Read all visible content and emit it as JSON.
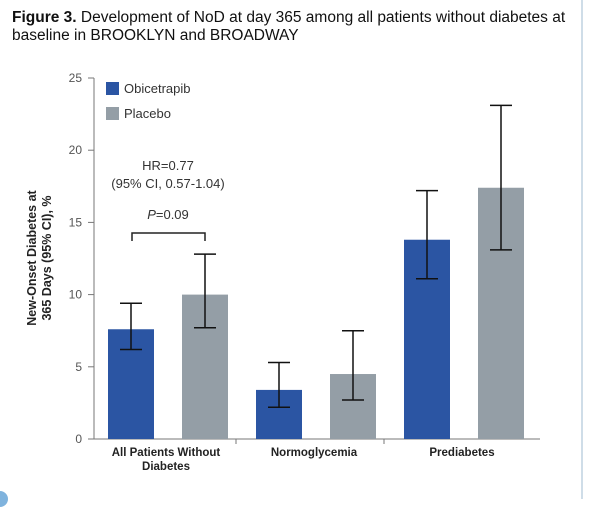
{
  "figure": {
    "label": "Figure 3.",
    "caption": "Development of NoD at day 365 among all patients without diabetes at baseline in BROOKLYN and BROADWAY"
  },
  "chart_data": {
    "type": "bar",
    "ylabel": "New-Onset Diabetes at 365 Days (95% CI), %",
    "ylim": [
      0,
      25
    ],
    "yticks": [
      0,
      5,
      10,
      15,
      20,
      25
    ],
    "categories": [
      "All Patients Without Diabetes",
      "Normoglycemia",
      "Prediabetes"
    ],
    "series": [
      {
        "name": "Obicetrapib",
        "color": "#2b55a3",
        "values": [
          7.6,
          3.4,
          13.8
        ],
        "ci_low": [
          6.2,
          2.2,
          11.1
        ],
        "ci_high": [
          9.4,
          5.3,
          17.2
        ]
      },
      {
        "name": "Placebo",
        "color": "#949ea6",
        "values": [
          10.0,
          4.5,
          17.4
        ],
        "ci_low": [
          7.7,
          2.7,
          13.1
        ],
        "ci_high": [
          12.8,
          7.5,
          23.1
        ]
      }
    ],
    "legend_position": "top-left",
    "grid": false,
    "annotation": {
      "hr_line1": "HR=0.77",
      "hr_line2": "(95% CI, 0.57-1.04)",
      "p_label": "P",
      "p_value": "=0.09"
    }
  }
}
